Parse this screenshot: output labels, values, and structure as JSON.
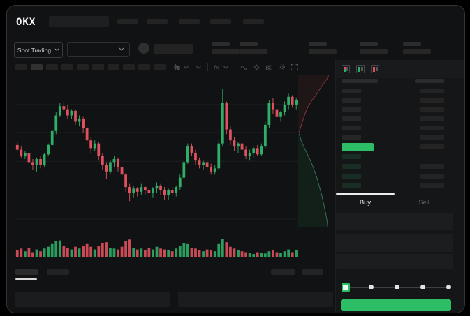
{
  "app": {
    "logo_text": "OKX"
  },
  "colors": {
    "up": "#2eae68",
    "down": "#df515e",
    "button": "#2dbd64",
    "bg": "#111213",
    "panel": "#151617"
  },
  "topbar": {
    "logo_text": "OKX",
    "nav_placeholder_count": 5
  },
  "market_bar": {
    "market_type_label": "Spot Trading",
    "stat_group_count": 5
  },
  "chart_toolbar": {
    "interval_placeholder_count": 10,
    "active_interval_index": 1,
    "icons": [
      "candles-icon",
      "chevron-down-icon",
      "indicators-icon",
      "chevron-down-icon",
      "trendline-icon",
      "diamond-icon",
      "camera-icon",
      "settings-icon",
      "expand-icon"
    ]
  },
  "chart_data": [
    {
      "type": "candlestick",
      "title": "",
      "x_unit": "candle index (no time axis labels visible)",
      "value_range": [
        0,
        100
      ],
      "grid_prices": [
        83,
        65,
        46.5,
        28,
        9.5
      ],
      "candles": [
        [
          57,
          59,
          53,
          54
        ],
        [
          54,
          56,
          49,
          50
        ],
        [
          50,
          53,
          48,
          52
        ],
        [
          52,
          53,
          44,
          46
        ],
        [
          46,
          48,
          41,
          44
        ],
        [
          44,
          49,
          40,
          48
        ],
        [
          48,
          50,
          42,
          44
        ],
        [
          44,
          52,
          43,
          51
        ],
        [
          51,
          58,
          50,
          57
        ],
        [
          57,
          67,
          56,
          66
        ],
        [
          66,
          78,
          64,
          76
        ],
        [
          76,
          84,
          75,
          82
        ],
        [
          82,
          85,
          78,
          80
        ],
        [
          80,
          83,
          74,
          76
        ],
        [
          76,
          80,
          74,
          79
        ],
        [
          79,
          80,
          70,
          72
        ],
        [
          72,
          76,
          69,
          74
        ],
        [
          74,
          75,
          65,
          68
        ],
        [
          68,
          69,
          57,
          60
        ],
        [
          60,
          62,
          52,
          55
        ],
        [
          55,
          60,
          53,
          58
        ],
        [
          58,
          59,
          47,
          50
        ],
        [
          50,
          52,
          41,
          44
        ],
        [
          44,
          46,
          35,
          40
        ],
        [
          40,
          47,
          38,
          46
        ],
        [
          46,
          50,
          43,
          48
        ],
        [
          48,
          49,
          40,
          43
        ],
        [
          43,
          44,
          33,
          38
        ],
        [
          38,
          39,
          27,
          30
        ],
        [
          30,
          32,
          21,
          26
        ],
        [
          26,
          31,
          23,
          29
        ],
        [
          29,
          30,
          24,
          27
        ],
        [
          27,
          32,
          25,
          30
        ],
        [
          30,
          31,
          25,
          28
        ],
        [
          28,
          30,
          22,
          26
        ],
        [
          26,
          30,
          23,
          29
        ],
        [
          29,
          33,
          26,
          31
        ],
        [
          31,
          32,
          25,
          28
        ],
        [
          28,
          30,
          22,
          25
        ],
        [
          25,
          29,
          22,
          28
        ],
        [
          28,
          30,
          24,
          26
        ],
        [
          26,
          31,
          24,
          30
        ],
        [
          30,
          38,
          28,
          36
        ],
        [
          36,
          48,
          35,
          46
        ],
        [
          46,
          58,
          45,
          56
        ],
        [
          56,
          58,
          50,
          52
        ],
        [
          52,
          54,
          44,
          47
        ],
        [
          47,
          49,
          42,
          44
        ],
        [
          44,
          47,
          41,
          46
        ],
        [
          46,
          48,
          41,
          43
        ],
        [
          43,
          45,
          38,
          40
        ],
        [
          40,
          44,
          38,
          42
        ],
        [
          42,
          60,
          41,
          58
        ],
        [
          58,
          93,
          56,
          84
        ],
        [
          84,
          85,
          64,
          67
        ],
        [
          67,
          69,
          57,
          60
        ],
        [
          60,
          62,
          53,
          56
        ],
        [
          56,
          59,
          52,
          58
        ],
        [
          58,
          60,
          52,
          54
        ],
        [
          54,
          56,
          48,
          50
        ],
        [
          50,
          54,
          47,
          52
        ],
        [
          52,
          56,
          49,
          55
        ],
        [
          55,
          57,
          50,
          51
        ],
        [
          51,
          58,
          50,
          56
        ],
        [
          56,
          72,
          55,
          70
        ],
        [
          70,
          86,
          68,
          84
        ],
        [
          84,
          87,
          77,
          80
        ],
        [
          80,
          82,
          73,
          75
        ],
        [
          75,
          79,
          72,
          78
        ],
        [
          78,
          85,
          76,
          83
        ],
        [
          83,
          90,
          80,
          88
        ],
        [
          88,
          89,
          81,
          83
        ],
        [
          83,
          87,
          80,
          86
        ]
      ],
      "volumes": [
        35,
        45,
        30,
        50,
        25,
        40,
        30,
        45,
        55,
        70,
        85,
        90,
        60,
        50,
        40,
        55,
        45,
        60,
        70,
        55,
        40,
        60,
        75,
        80,
        50,
        45,
        40,
        55,
        85,
        95,
        50,
        40,
        45,
        35,
        50,
        40,
        55,
        45,
        40,
        35,
        30,
        45,
        60,
        75,
        70,
        50,
        45,
        35,
        30,
        40,
        35,
        30,
        70,
        100,
        80,
        55,
        45,
        35,
        30,
        25,
        20,
        15,
        25,
        20,
        18,
        30,
        35,
        25,
        20,
        30,
        40,
        25,
        35
      ]
    },
    {
      "type": "area",
      "name": "depth",
      "orientation": "vertical (asks above, bids below)",
      "asks_curve": [
        [
          0.03,
          0
        ],
        [
          0.06,
          0.06
        ],
        [
          0.1,
          0.14
        ],
        [
          0.16,
          0.24
        ],
        [
          0.22,
          0.34
        ],
        [
          0.3,
          0.45
        ],
        [
          0.42,
          0.56
        ],
        [
          0.55,
          0.66
        ],
        [
          0.66,
          0.76
        ],
        [
          0.78,
          0.86
        ],
        [
          0.88,
          0.94
        ],
        [
          0.93,
          1
        ]
      ],
      "bids_curve": [
        [
          0.03,
          0
        ],
        [
          0.1,
          0.08
        ],
        [
          0.2,
          0.16
        ],
        [
          0.34,
          0.26
        ],
        [
          0.46,
          0.36
        ],
        [
          0.56,
          0.46
        ],
        [
          0.64,
          0.56
        ],
        [
          0.72,
          0.66
        ],
        [
          0.78,
          0.76
        ],
        [
          0.84,
          0.86
        ],
        [
          0.88,
          0.94
        ],
        [
          0.9,
          1
        ]
      ]
    }
  ],
  "order_book": {
    "view_mode_icons": [
      "book-combined-icon",
      "book-bids-icon",
      "book-asks-icon"
    ],
    "has_header_row": true,
    "ask_row_count": 6,
    "bid_row_count": 4,
    "last_price_highlight": "up"
  },
  "trade_panel": {
    "tabs": [
      {
        "label": "Buy",
        "active": true
      },
      {
        "label": "Sell",
        "active": false
      }
    ],
    "field_count": 3,
    "slider": {
      "stop_count": 5,
      "active_stop": 0
    },
    "submit_button": {
      "label": "",
      "color": "#2dbd64"
    }
  },
  "bottom_panel": {
    "tab_count": 2,
    "active_tab": 0,
    "right_placeholder_count": 2,
    "content_panel_count": 2
  }
}
